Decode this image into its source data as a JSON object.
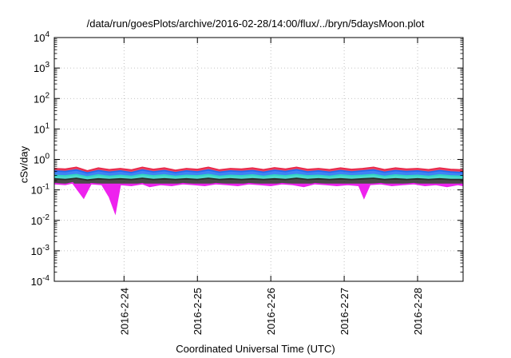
{
  "chart_data": {
    "type": "area",
    "title": "/data/run/goesPlots/archive/2016-02-28/14:00/flux/../bryn/5daysMoon.plot",
    "xlabel": "Coordinated Universal Time (UTC)",
    "ylabel": "cSv/day",
    "yscale": "log",
    "ylim": [
      0.0001,
      10000
    ],
    "xlim": [
      23.05,
      28.62
    ],
    "grid": true,
    "legend": "none",
    "y_ticks": [
      {
        "value": 0.0001,
        "mantissa": "10",
        "exp": "-4"
      },
      {
        "value": 0.001,
        "mantissa": "10",
        "exp": "-3"
      },
      {
        "value": 0.01,
        "mantissa": "10",
        "exp": "-2"
      },
      {
        "value": 0.1,
        "mantissa": "10",
        "exp": "-1"
      },
      {
        "value": 1,
        "mantissa": "10",
        "exp": "0"
      },
      {
        "value": 10,
        "mantissa": "10",
        "exp": "1"
      },
      {
        "value": 100,
        "mantissa": "10",
        "exp": "2"
      },
      {
        "value": 1000,
        "mantissa": "10",
        "exp": "3"
      },
      {
        "value": 10000,
        "mantissa": "10",
        "exp": "4"
      }
    ],
    "x_ticks": [
      {
        "value": 24,
        "label": "2016-2-24"
      },
      {
        "value": 25,
        "label": "2016-2-25"
      },
      {
        "value": 26,
        "label": "2016-2-26"
      },
      {
        "value": 27,
        "label": "2016-2-27"
      },
      {
        "value": 28,
        "label": "2016-2-28"
      }
    ],
    "series": [
      {
        "color": "#e8284a",
        "points": [
          [
            23.05,
            0.5
          ],
          [
            23.2,
            0.48
          ],
          [
            23.35,
            0.55
          ],
          [
            23.5,
            0.42
          ],
          [
            23.65,
            0.52
          ],
          [
            23.8,
            0.46
          ],
          [
            23.95,
            0.5
          ],
          [
            24.1,
            0.45
          ],
          [
            24.25,
            0.55
          ],
          [
            24.4,
            0.47
          ],
          [
            24.55,
            0.52
          ],
          [
            24.7,
            0.44
          ],
          [
            24.85,
            0.5
          ],
          [
            25.0,
            0.47
          ],
          [
            25.15,
            0.55
          ],
          [
            25.3,
            0.45
          ],
          [
            25.45,
            0.5
          ],
          [
            25.6,
            0.48
          ],
          [
            25.75,
            0.52
          ],
          [
            25.9,
            0.46
          ],
          [
            26.05,
            0.53
          ],
          [
            26.2,
            0.48
          ],
          [
            26.35,
            0.55
          ],
          [
            26.5,
            0.47
          ],
          [
            26.65,
            0.5
          ],
          [
            26.8,
            0.46
          ],
          [
            26.95,
            0.52
          ],
          [
            27.1,
            0.47
          ],
          [
            27.25,
            0.5
          ],
          [
            27.4,
            0.55
          ],
          [
            27.55,
            0.46
          ],
          [
            27.7,
            0.52
          ],
          [
            27.85,
            0.48
          ],
          [
            28.0,
            0.5
          ],
          [
            28.15,
            0.46
          ],
          [
            28.3,
            0.52
          ],
          [
            28.45,
            0.47
          ],
          [
            28.62,
            0.45
          ]
        ]
      },
      {
        "color": "#1f6cf2",
        "points": [
          [
            23.05,
            0.42
          ],
          [
            23.2,
            0.4
          ],
          [
            23.35,
            0.45
          ],
          [
            23.5,
            0.36
          ],
          [
            23.65,
            0.43
          ],
          [
            23.8,
            0.38
          ],
          [
            23.95,
            0.42
          ],
          [
            24.1,
            0.37
          ],
          [
            24.25,
            0.45
          ],
          [
            24.4,
            0.39
          ],
          [
            24.55,
            0.43
          ],
          [
            24.7,
            0.37
          ],
          [
            24.85,
            0.42
          ],
          [
            25.0,
            0.39
          ],
          [
            25.15,
            0.45
          ],
          [
            25.3,
            0.38
          ],
          [
            25.45,
            0.42
          ],
          [
            25.6,
            0.4
          ],
          [
            25.75,
            0.43
          ],
          [
            25.9,
            0.38
          ],
          [
            26.05,
            0.44
          ],
          [
            26.2,
            0.4
          ],
          [
            26.35,
            0.46
          ],
          [
            26.5,
            0.39
          ],
          [
            26.65,
            0.42
          ],
          [
            26.8,
            0.38
          ],
          [
            26.95,
            0.43
          ],
          [
            27.1,
            0.39
          ],
          [
            27.25,
            0.42
          ],
          [
            27.4,
            0.45
          ],
          [
            27.55,
            0.38
          ],
          [
            27.7,
            0.43
          ],
          [
            27.85,
            0.4
          ],
          [
            28.0,
            0.42
          ],
          [
            28.15,
            0.38
          ],
          [
            28.3,
            0.43
          ],
          [
            28.45,
            0.39
          ],
          [
            28.62,
            0.37
          ]
        ]
      },
      {
        "color": "#2ed3c4",
        "points": [
          [
            23.05,
            0.3
          ],
          [
            23.2,
            0.29
          ],
          [
            23.35,
            0.32
          ],
          [
            23.5,
            0.27
          ],
          [
            23.65,
            0.31
          ],
          [
            23.8,
            0.28
          ],
          [
            23.95,
            0.3
          ],
          [
            24.1,
            0.28
          ],
          [
            24.25,
            0.32
          ],
          [
            24.4,
            0.29
          ],
          [
            24.55,
            0.31
          ],
          [
            24.7,
            0.28
          ],
          [
            24.85,
            0.3
          ],
          [
            25.0,
            0.29
          ],
          [
            25.15,
            0.32
          ],
          [
            25.3,
            0.28
          ],
          [
            25.45,
            0.3
          ],
          [
            25.6,
            0.29
          ],
          [
            25.75,
            0.31
          ],
          [
            25.9,
            0.28
          ],
          [
            26.05,
            0.31
          ],
          [
            26.2,
            0.29
          ],
          [
            26.35,
            0.32
          ],
          [
            26.5,
            0.29
          ],
          [
            26.65,
            0.3
          ],
          [
            26.8,
            0.28
          ],
          [
            26.95,
            0.31
          ],
          [
            27.1,
            0.29
          ],
          [
            27.25,
            0.3
          ],
          [
            27.4,
            0.32
          ],
          [
            27.55,
            0.28
          ],
          [
            27.7,
            0.31
          ],
          [
            27.85,
            0.29
          ],
          [
            28.0,
            0.3
          ],
          [
            28.15,
            0.28
          ],
          [
            28.3,
            0.31
          ],
          [
            28.45,
            0.29
          ],
          [
            28.62,
            0.28
          ]
        ]
      },
      {
        "color": "#2b2b2b",
        "points": [
          [
            23.05,
            0.23
          ],
          [
            23.2,
            0.22
          ],
          [
            23.35,
            0.24
          ],
          [
            23.5,
            0.21
          ],
          [
            23.65,
            0.23
          ],
          [
            23.8,
            0.22
          ],
          [
            23.95,
            0.23
          ],
          [
            24.1,
            0.22
          ],
          [
            24.25,
            0.24
          ],
          [
            24.4,
            0.22
          ],
          [
            24.55,
            0.23
          ],
          [
            24.7,
            0.22
          ],
          [
            24.85,
            0.23
          ],
          [
            25.0,
            0.22
          ],
          [
            25.15,
            0.24
          ],
          [
            25.3,
            0.22
          ],
          [
            25.45,
            0.23
          ],
          [
            25.6,
            0.22
          ],
          [
            25.75,
            0.23
          ],
          [
            25.9,
            0.22
          ],
          [
            26.05,
            0.23
          ],
          [
            26.2,
            0.22
          ],
          [
            26.35,
            0.24
          ],
          [
            26.5,
            0.22
          ],
          [
            26.65,
            0.23
          ],
          [
            26.8,
            0.22
          ],
          [
            26.95,
            0.23
          ],
          [
            27.1,
            0.22
          ],
          [
            27.25,
            0.23
          ],
          [
            27.4,
            0.24
          ],
          [
            27.55,
            0.22
          ],
          [
            27.7,
            0.23
          ],
          [
            27.85,
            0.22
          ],
          [
            28.0,
            0.23
          ],
          [
            28.15,
            0.22
          ],
          [
            28.3,
            0.23
          ],
          [
            28.45,
            0.22
          ],
          [
            28.62,
            0.22
          ]
        ]
      },
      {
        "color": "#ee22ee",
        "points": [
          [
            23.05,
            0.16
          ],
          [
            23.2,
            0.15
          ],
          [
            23.3,
            0.17
          ],
          [
            23.45,
            0.055
          ],
          [
            23.55,
            0.16
          ],
          [
            23.7,
            0.15
          ],
          [
            23.8,
            0.06
          ],
          [
            23.88,
            0.018
          ],
          [
            23.95,
            0.15
          ],
          [
            24.1,
            0.14
          ],
          [
            24.25,
            0.16
          ],
          [
            24.35,
            0.13
          ],
          [
            24.5,
            0.15
          ],
          [
            24.65,
            0.14
          ],
          [
            24.8,
            0.16
          ],
          [
            24.95,
            0.15
          ],
          [
            25.1,
            0.14
          ],
          [
            25.25,
            0.16
          ],
          [
            25.4,
            0.15
          ],
          [
            25.55,
            0.14
          ],
          [
            25.7,
            0.16
          ],
          [
            25.85,
            0.15
          ],
          [
            26.0,
            0.14
          ],
          [
            26.15,
            0.16
          ],
          [
            26.3,
            0.15
          ],
          [
            26.45,
            0.13
          ],
          [
            26.6,
            0.16
          ],
          [
            26.75,
            0.15
          ],
          [
            26.9,
            0.14
          ],
          [
            27.05,
            0.15
          ],
          [
            27.2,
            0.14
          ],
          [
            27.27,
            0.055
          ],
          [
            27.35,
            0.15
          ],
          [
            27.5,
            0.16
          ],
          [
            27.65,
            0.14
          ],
          [
            27.8,
            0.15
          ],
          [
            27.95,
            0.16
          ],
          [
            28.1,
            0.14
          ],
          [
            28.25,
            0.15
          ],
          [
            28.4,
            0.13
          ],
          [
            28.55,
            0.15
          ],
          [
            28.62,
            0.14
          ]
        ]
      }
    ]
  }
}
